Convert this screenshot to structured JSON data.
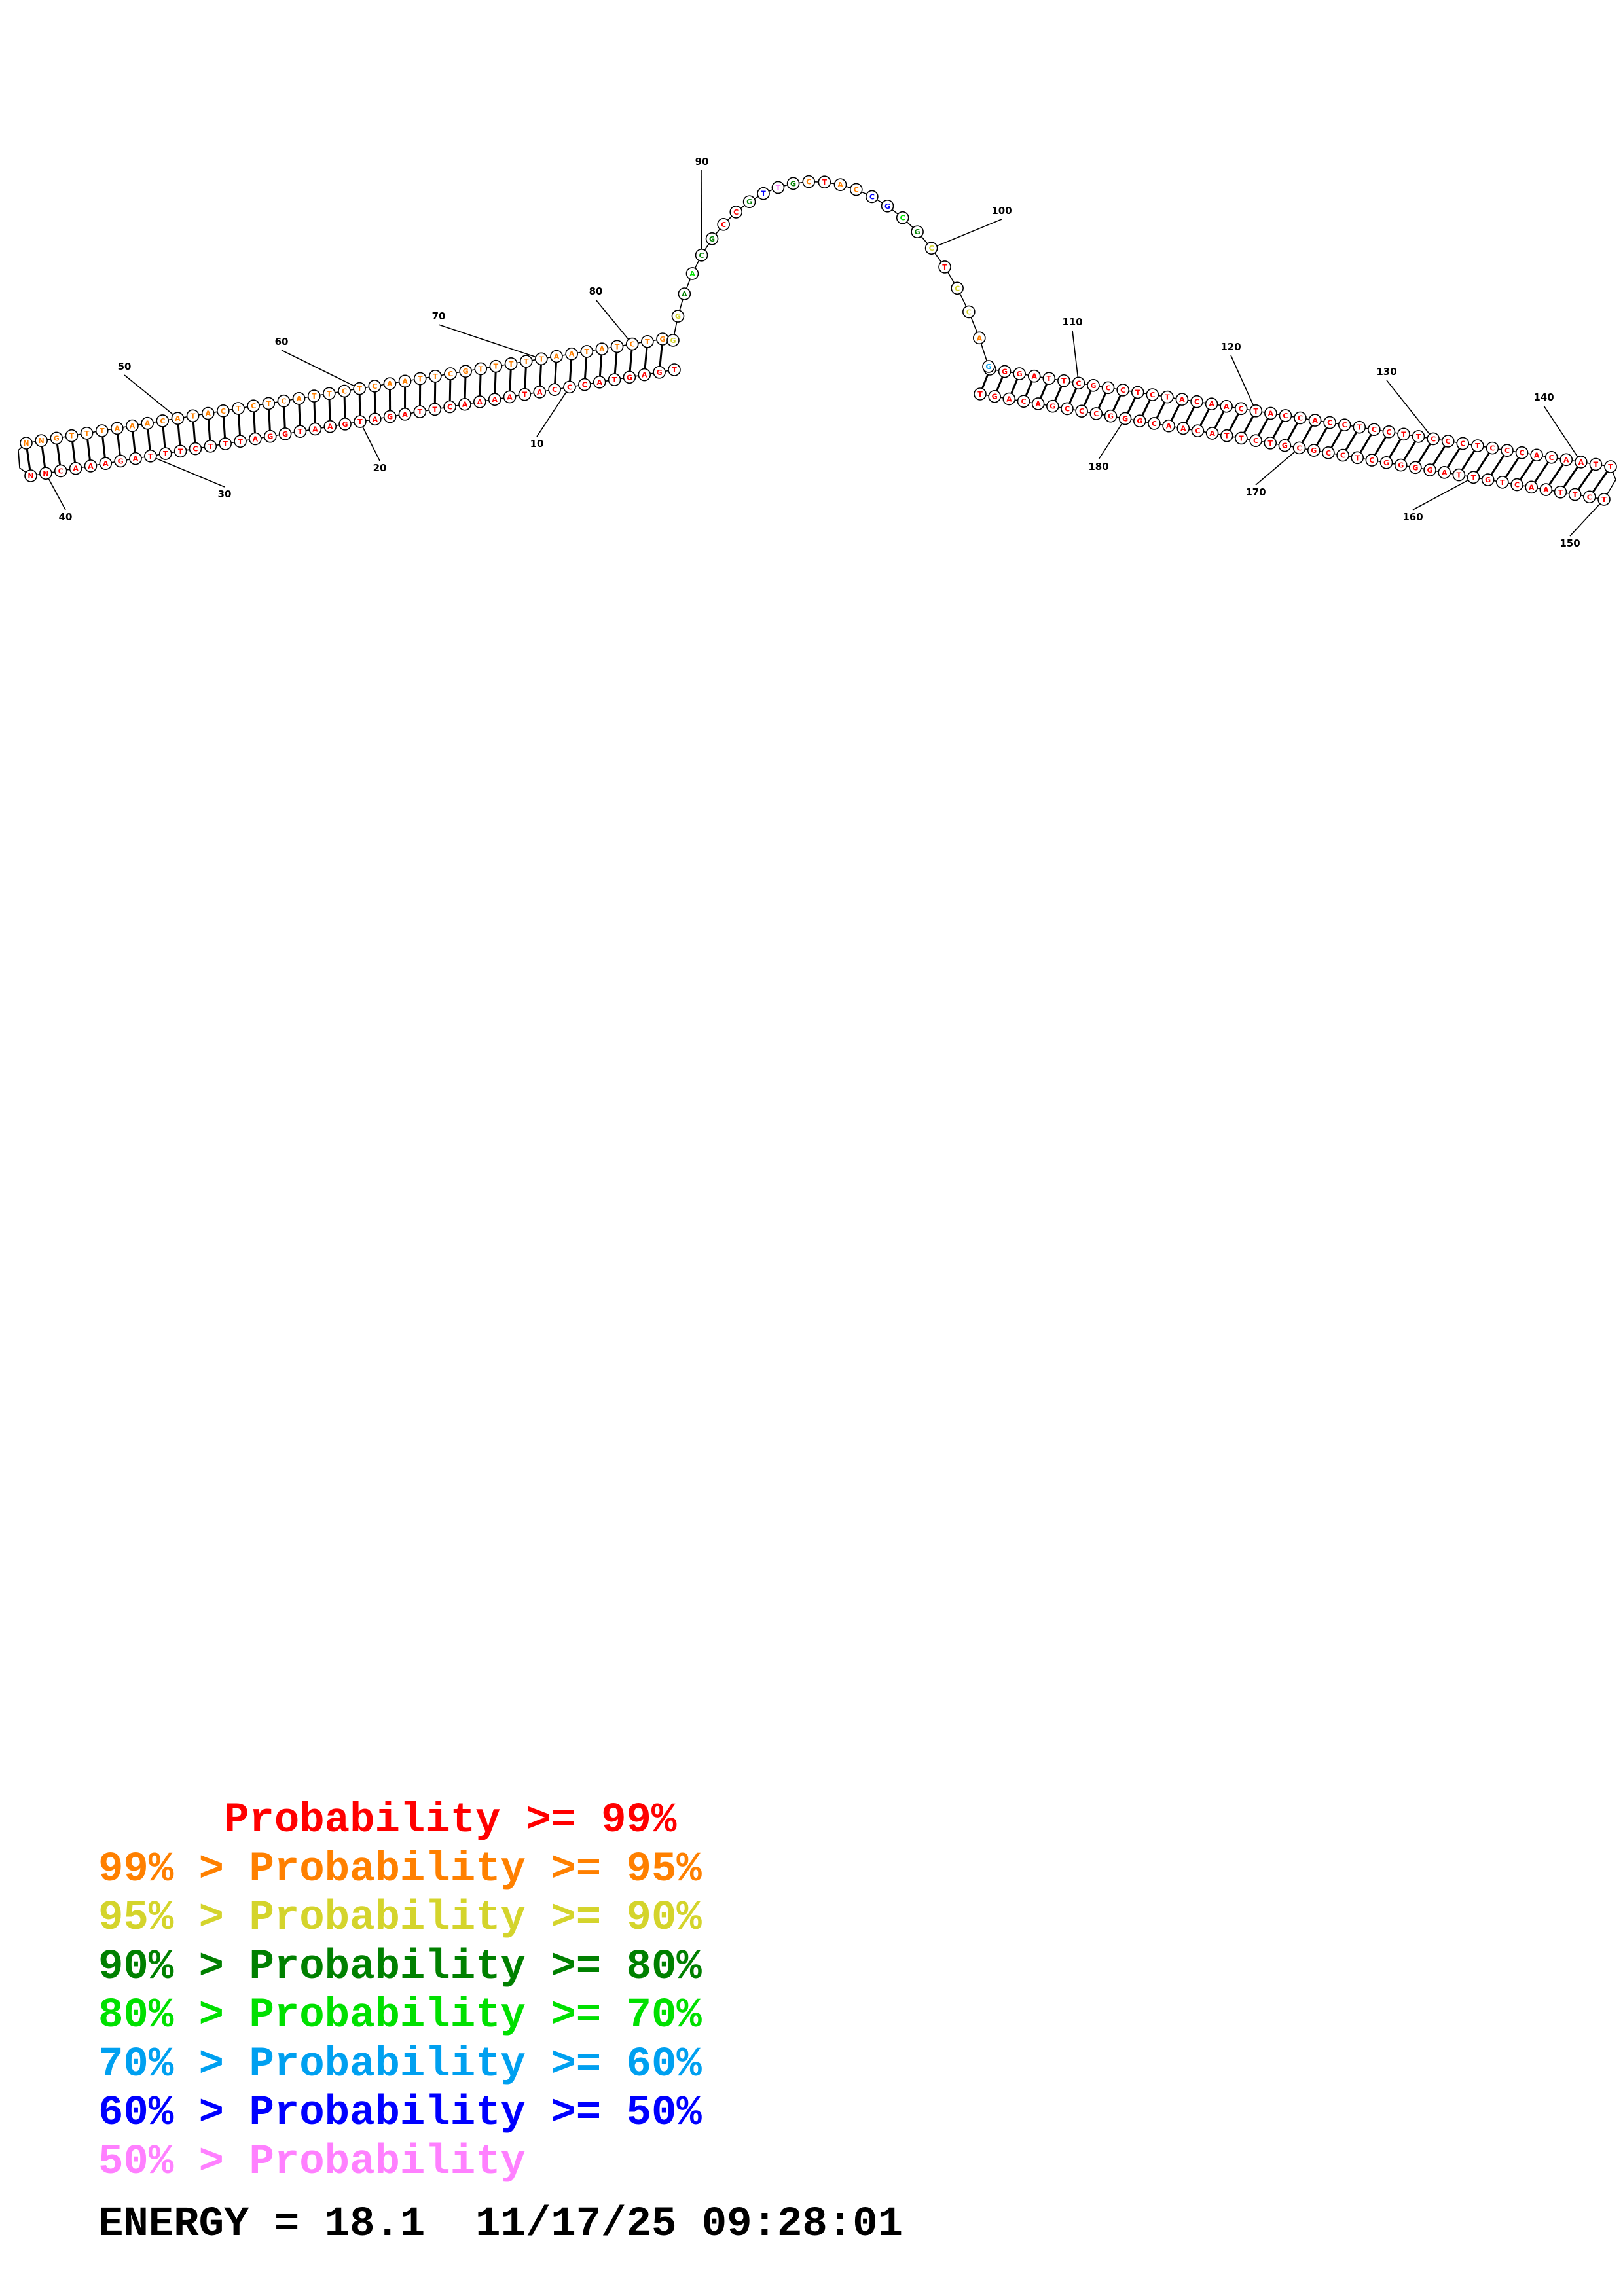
{
  "colors": {
    "p99": "#ff0000",
    "p95": "#ff8000",
    "p90": "#d4d42c",
    "p80": "#008000",
    "p70": "#00e000",
    "p60": "#00a0f0",
    "p50": "#0000ff",
    "plow": "#ff80ff"
  },
  "legend": [
    {
      "text": "     Probability >= 99%",
      "color": "p99"
    },
    {
      "text": "99% > Probability >= 95%",
      "color": "p95"
    },
    {
      "text": "95% > Probability >= 90%",
      "color": "p90"
    },
    {
      "text": "90% > Probability >= 80%",
      "color": "p80"
    },
    {
      "text": "80% > Probability >= 70%",
      "color": "p70"
    },
    {
      "text": "70% > Probability >= 60%",
      "color": "p60"
    },
    {
      "text": "60% > Probability >= 50%",
      "color": "p50"
    },
    {
      "text": "50% > Probability",
      "color": "plow"
    }
  ],
  "energy_line": "ENERGY = 18.1  11/17/25 09:28:01",
  "structure": {
    "tick_labels": [
      "10",
      "20",
      "30",
      "40",
      "50",
      "60",
      "70",
      "80",
      "90",
      "100",
      "110",
      "120",
      "130",
      "140",
      "150",
      "160",
      "170",
      "180"
    ],
    "stem1": {
      "outer_strand": "NNGTTTAAACATACTCTCATTCTCAATTCGTTTTTAATATCTG",
      "inner_strand": "NNCAAAGATTTCTTTAGGTAAGTAGATTCAAAATACCCATGAGT",
      "colors_outer": "p95",
      "colors_inner": "p99"
    },
    "loop": {
      "sequence": "GGAACGCCGTTGCTACCGCGCTCCAG",
      "colors": [
        "p90",
        "p90",
        "p80",
        "p70",
        "p80",
        "p80",
        "p99",
        "p99",
        "p80",
        "p50",
        "plow",
        "p80",
        "p95",
        "p99",
        "p95",
        "p95",
        "p50",
        "p50",
        "p70",
        "p80",
        "p90",
        "p99",
        "p90",
        "p90",
        "p95",
        "p60"
      ]
    },
    "stem2": {
      "outer_strand": "AGGATTCGCCTCTACAACTACCACCTCCTTCCCTCCCACAATT",
      "inner_strand": "TGACAGCCCGGGCAACATTCTGCGCCTCGGGGATTGTCAATTCT",
      "colors_outer": "p99",
      "colors_inner": "p99"
    }
  }
}
